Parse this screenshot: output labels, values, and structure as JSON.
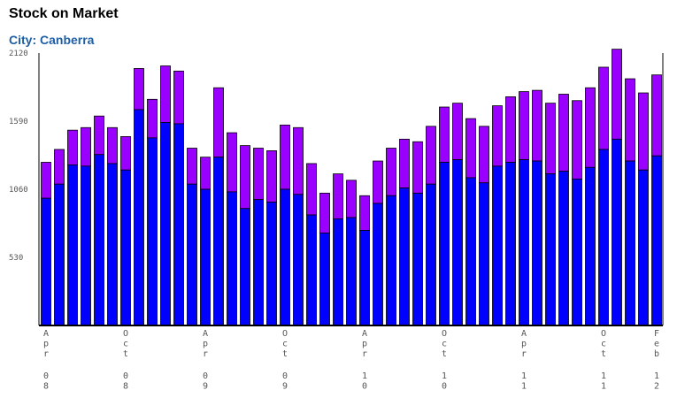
{
  "header": {
    "title": "Stock on Market",
    "subtitle": "City: Canberra"
  },
  "colors": {
    "base_series": "#0000ff",
    "top_series": "#9900ff",
    "bar_outline": "#000000",
    "axis": "#000000"
  },
  "chart_data": {
    "type": "bar",
    "stacked": true,
    "title": "Stock on Market",
    "subtitle": "City: Canberra",
    "xlabel": "",
    "ylabel": "",
    "ylim": [
      0,
      2120
    ],
    "yticks": [
      530,
      1060,
      1590,
      2120
    ],
    "grid": false,
    "legend": "none",
    "x_tick_labels": [
      {
        "index": 0,
        "month": "Apr",
        "year": "08"
      },
      {
        "index": 6,
        "month": "Oct",
        "year": "08"
      },
      {
        "index": 12,
        "month": "Apr",
        "year": "09"
      },
      {
        "index": 18,
        "month": "Oct",
        "year": "09"
      },
      {
        "index": 24,
        "month": "Apr",
        "year": "10"
      },
      {
        "index": 30,
        "month": "Oct",
        "year": "10"
      },
      {
        "index": 36,
        "month": "Apr",
        "year": "11"
      },
      {
        "index": 42,
        "month": "Oct",
        "year": "11"
      },
      {
        "index": 46,
        "month": "Feb",
        "year": "12"
      }
    ],
    "series": [
      {
        "values": [
          990,
          1100,
          1250,
          1240,
          1330,
          1260,
          1210,
          1680,
          1460,
          1580,
          1570,
          1100,
          1060,
          1310,
          1040,
          910,
          980,
          960,
          1060,
          1020,
          860,
          720,
          830,
          840,
          740,
          950,
          1010,
          1070,
          1030,
          1100,
          1270,
          1290,
          1150,
          1110,
          1240,
          1270,
          1290,
          1280,
          1180,
          1200,
          1140,
          1230,
          1370,
          1450,
          1280,
          1210,
          1320
        ]
      },
      {
        "values": [
          280,
          270,
          270,
          300,
          300,
          280,
          260,
          320,
          300,
          440,
          410,
          280,
          250,
          540,
          460,
          490,
          400,
          400,
          500,
          520,
          400,
          310,
          350,
          290,
          270,
          330,
          370,
          380,
          400,
          450,
          430,
          440,
          460,
          440,
          470,
          510,
          530,
          550,
          550,
          600,
          610,
          620,
          640,
          700,
          640,
          600,
          630
        ]
      }
    ]
  }
}
